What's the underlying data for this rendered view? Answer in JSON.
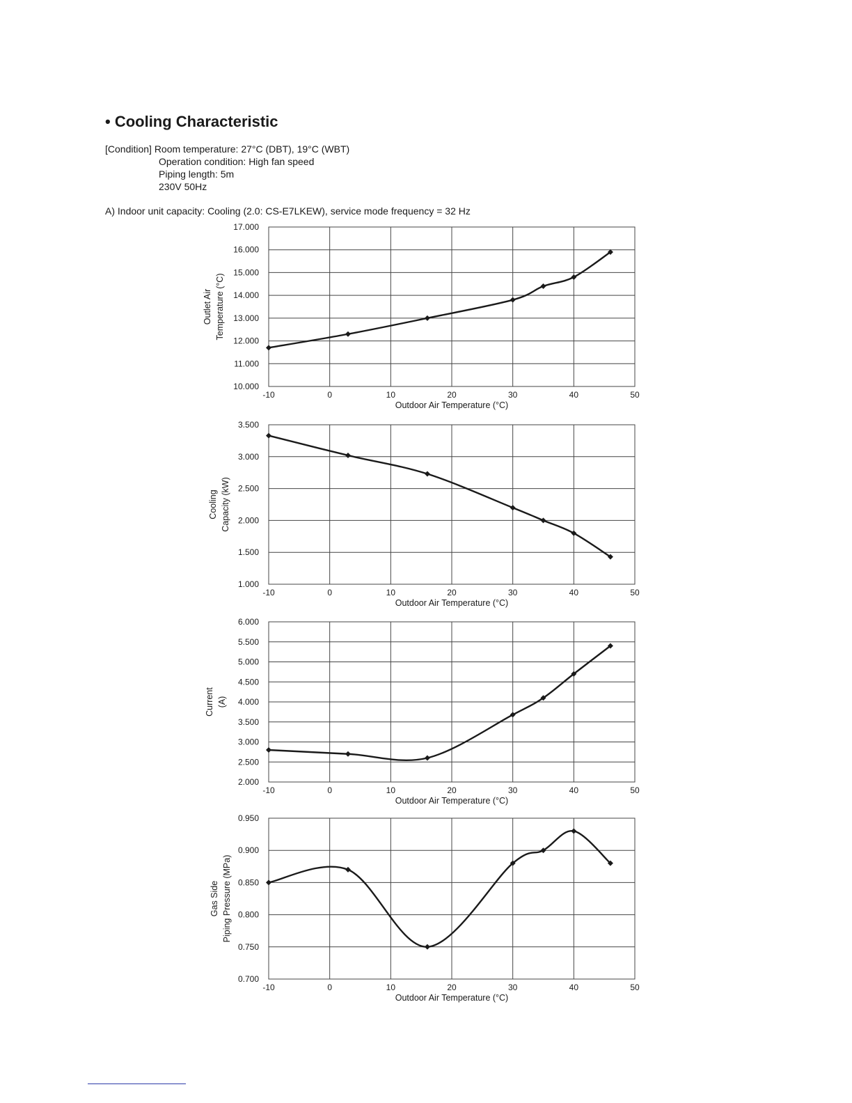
{
  "section": {
    "title": "• Cooling Characteristic",
    "condition": [
      "[Condition] Room temperature: 27°C (DBT), 19°C (WBT)",
      "Operation condition: High fan speed",
      "Piping length: 5m",
      "230V  50Hz"
    ],
    "subtitle": "A) Indoor unit capacity: Cooling (2.0: CS-E7LKEW), service mode frequency = 32 Hz"
  },
  "colors": {
    "line": "#1a1a1a",
    "grid": "#444444",
    "text": "#1a1a1a"
  },
  "chart_data": [
    {
      "type": "line",
      "title": "",
      "xlabel": "Outdoor Air Temperature (°C)",
      "ylabel": [
        "Outlet Air",
        "Temperature (°C)"
      ],
      "xlim": [
        -10,
        50
      ],
      "ylim": [
        10,
        17
      ],
      "xticks": [
        -10,
        0,
        10,
        20,
        30,
        40,
        50
      ],
      "yticks": [
        "10.000",
        "11.000",
        "12.000",
        "13.000",
        "14.000",
        "15.000",
        "16.000",
        "17.000"
      ],
      "grid": true,
      "series": [
        {
          "x": [
            -10,
            3,
            16,
            30,
            35,
            40,
            46
          ],
          "y": [
            11.7,
            12.3,
            13.0,
            13.8,
            14.4,
            14.8,
            15.9
          ]
        }
      ]
    },
    {
      "type": "line",
      "title": "",
      "xlabel": "Outdoor Air Temperature (°C)",
      "ylabel": [
        "Cooling",
        "Capacity (kW)"
      ],
      "xlim": [
        -10,
        50
      ],
      "ylim": [
        1,
        3.5
      ],
      "xticks": [
        -10,
        0,
        10,
        20,
        30,
        40,
        50
      ],
      "yticks": [
        "1.000",
        "1.500",
        "2.000",
        "2.500",
        "3.000",
        "3.500"
      ],
      "grid": true,
      "series": [
        {
          "x": [
            -10,
            3,
            16,
            30,
            35,
            40,
            46
          ],
          "y": [
            3.33,
            3.02,
            2.73,
            2.2,
            2.0,
            1.8,
            1.43
          ]
        }
      ]
    },
    {
      "type": "line",
      "title": "",
      "xlabel": "Outdoor Air Temperature (°C)",
      "ylabel": [
        "Current",
        "(A)"
      ],
      "xlim": [
        -10,
        50
      ],
      "ylim": [
        2,
        6
      ],
      "xticks": [
        -10,
        0,
        10,
        20,
        30,
        40,
        50
      ],
      "yticks": [
        "2.000",
        "2.500",
        "3.000",
        "3.500",
        "4.000",
        "4.500",
        "5.000",
        "5.500",
        "6.000"
      ],
      "grid": true,
      "series": [
        {
          "x": [
            -10,
            3,
            16,
            30,
            35,
            40,
            46
          ],
          "y": [
            2.8,
            2.7,
            2.6,
            3.68,
            4.1,
            4.7,
            5.4
          ]
        }
      ]
    },
    {
      "type": "line",
      "title": "",
      "xlabel": "Outdoor Air Temperature (°C)",
      "ylabel": [
        "Gas Side",
        "Piping Pressure (MPa)"
      ],
      "xlim": [
        -10,
        50
      ],
      "ylim": [
        0.7,
        0.95
      ],
      "xticks": [
        -10,
        0,
        10,
        20,
        30,
        40,
        50
      ],
      "yticks": [
        "0.700",
        "0.750",
        "0.800",
        "0.850",
        "0.900",
        "0.950"
      ],
      "grid": true,
      "series": [
        {
          "x": [
            -10,
            3,
            16,
            30,
            35,
            40,
            46
          ],
          "y": [
            0.85,
            0.87,
            0.75,
            0.88,
            0.9,
            0.93,
            0.88
          ]
        }
      ]
    }
  ]
}
